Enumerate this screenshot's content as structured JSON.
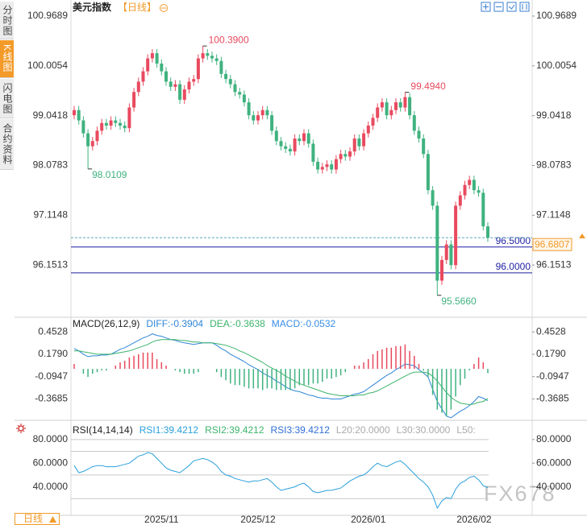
{
  "sidebar_tabs": [
    "分时图",
    "K线图",
    "闪电图",
    "合约资料"
  ],
  "period_button": "日线",
  "watermark": "FX678",
  "chart_data": [
    {
      "type": "candlestick",
      "title": "美元指数",
      "subtitle": "【日线】",
      "categories": [
        null,
        null,
        null,
        null,
        null,
        null,
        null,
        null,
        null,
        null,
        null,
        null,
        null,
        null,
        null,
        null,
        null,
        null,
        null,
        "2025/11",
        null,
        null,
        null,
        null,
        null,
        null,
        null,
        null,
        null,
        null,
        null,
        null,
        null,
        null,
        null,
        null,
        null,
        null,
        null,
        null,
        "2025/12",
        null,
        null,
        null,
        null,
        null,
        null,
        null,
        null,
        null,
        null,
        null,
        null,
        null,
        null,
        null,
        null,
        null,
        null,
        null,
        null,
        null,
        null,
        null,
        "2026/01",
        null,
        null,
        null,
        null,
        null,
        null,
        null,
        null,
        null,
        null,
        null,
        null,
        null,
        null,
        null,
        null,
        null,
        null,
        null,
        null,
        null,
        null,
        "2026/02",
        null,
        null,
        null
      ],
      "open": [
        99.05,
        99.15,
        98.95,
        98.7,
        98.45,
        98.55,
        98.75,
        98.9,
        98.85,
        98.95,
        98.9,
        98.85,
        98.8,
        99.2,
        99.5,
        99.7,
        99.9,
        100.15,
        100.25,
        100.05,
        99.9,
        99.7,
        99.6,
        99.65,
        99.35,
        99.55,
        99.7,
        99.75,
        100.15,
        100.25,
        100.2,
        100.15,
        100.1,
        99.85,
        99.75,
        99.65,
        99.5,
        99.45,
        99.3,
        99.05,
        98.95,
        99.05,
        99.15,
        99.05,
        98.75,
        98.55,
        98.45,
        98.4,
        98.35,
        98.6,
        98.55,
        98.7,
        98.5,
        98.15,
        98.0,
        98.05,
        98.1,
        98.0,
        98.2,
        98.3,
        98.25,
        98.35,
        98.6,
        98.45,
        98.7,
        98.85,
        99.0,
        99.2,
        99.3,
        99.05,
        99.15,
        99.3,
        99.2,
        99.4,
        99.05,
        98.75,
        98.6,
        98.3,
        97.6,
        97.3,
        95.85,
        96.25,
        96.55,
        96.15,
        97.3,
        97.5,
        97.7,
        97.8,
        97.6,
        97.55,
        96.9
      ],
      "high": [
        99.23,
        99.23,
        99.03,
        98.78,
        98.63,
        98.83,
        98.98,
        98.98,
        99.03,
        99.03,
        98.98,
        98.93,
        99.28,
        99.58,
        99.78,
        99.98,
        100.23,
        100.33,
        100.33,
        100.13,
        99.98,
        99.78,
        99.73,
        99.73,
        99.63,
        99.78,
        99.83,
        100.23,
        100.39,
        100.33,
        100.28,
        100.23,
        100.18,
        99.93,
        99.83,
        99.73,
        99.58,
        99.53,
        99.38,
        99.13,
        99.13,
        99.23,
        99.23,
        99.13,
        98.83,
        98.63,
        98.53,
        98.48,
        98.68,
        98.68,
        98.78,
        98.78,
        98.58,
        98.23,
        98.13,
        98.18,
        98.18,
        98.28,
        98.38,
        98.38,
        98.43,
        98.68,
        98.68,
        98.78,
        98.93,
        99.08,
        99.28,
        99.38,
        99.38,
        99.23,
        99.38,
        99.38,
        99.494,
        99.48,
        99.13,
        98.83,
        98.68,
        98.38,
        97.68,
        97.38,
        96.33,
        96.63,
        96.63,
        97.38,
        97.58,
        97.78,
        97.88,
        97.88,
        97.68,
        97.63,
        96.98
      ],
      "low": [
        98.97,
        98.87,
        98.62,
        98.0109,
        98.37,
        98.47,
        98.67,
        98.77,
        98.77,
        98.82,
        98.77,
        98.72,
        98.72,
        99.12,
        99.42,
        99.62,
        99.82,
        100.07,
        99.97,
        99.82,
        99.62,
        99.52,
        99.52,
        99.27,
        99.27,
        99.47,
        99.62,
        99.67,
        100.07,
        100.12,
        100.07,
        100.02,
        99.77,
        99.67,
        99.57,
        99.42,
        99.37,
        99.22,
        98.97,
        98.87,
        98.87,
        98.97,
        98.97,
        98.67,
        98.47,
        98.37,
        98.32,
        98.27,
        98.27,
        98.47,
        98.47,
        98.42,
        98.07,
        97.92,
        97.92,
        97.97,
        97.92,
        97.92,
        98.12,
        98.17,
        98.17,
        98.27,
        98.37,
        98.37,
        98.62,
        98.77,
        98.92,
        99.12,
        98.97,
        98.97,
        99.07,
        99.12,
        99.12,
        98.97,
        98.67,
        98.52,
        98.22,
        97.52,
        97.22,
        95.566,
        95.77,
        96.17,
        96.07,
        96.07,
        97.22,
        97.42,
        97.62,
        97.52,
        97.47,
        96.82,
        96.6
      ],
      "close": [
        99.15,
        98.95,
        98.7,
        98.45,
        98.55,
        98.75,
        98.9,
        98.85,
        98.95,
        98.9,
        98.85,
        98.8,
        99.2,
        99.5,
        99.7,
        99.9,
        100.15,
        100.25,
        100.05,
        99.9,
        99.7,
        99.6,
        99.65,
        99.35,
        99.55,
        99.7,
        99.75,
        100.15,
        100.25,
        100.2,
        100.15,
        100.1,
        99.85,
        99.75,
        99.65,
        99.5,
        99.45,
        99.3,
        99.05,
        98.95,
        99.05,
        99.15,
        99.05,
        98.75,
        98.55,
        98.45,
        98.4,
        98.35,
        98.6,
        98.55,
        98.7,
        98.5,
        98.15,
        98.0,
        98.05,
        98.1,
        98.0,
        98.2,
        98.3,
        98.25,
        98.35,
        98.6,
        98.45,
        98.7,
        98.85,
        99.0,
        99.2,
        99.3,
        99.05,
        99.15,
        99.3,
        99.2,
        99.4,
        99.05,
        98.75,
        98.6,
        98.3,
        97.6,
        97.3,
        95.85,
        96.25,
        96.55,
        96.15,
        97.3,
        97.5,
        97.7,
        97.8,
        97.6,
        97.55,
        96.9,
        96.6807
      ],
      "high_labels": [
        null,
        null,
        null,
        null,
        null,
        null,
        null,
        null,
        null,
        null,
        null,
        null,
        null,
        null,
        null,
        null,
        null,
        null,
        null,
        null,
        null,
        null,
        null,
        null,
        null,
        null,
        null,
        null,
        "100.3900",
        null,
        null,
        null,
        null,
        null,
        null,
        null,
        null,
        null,
        null,
        null,
        null,
        null,
        null,
        null,
        null,
        null,
        null,
        null,
        null,
        null,
        null,
        null,
        null,
        null,
        null,
        null,
        null,
        null,
        null,
        null,
        null,
        null,
        null,
        null,
        null,
        null,
        null,
        null,
        null,
        null,
        null,
        null,
        "99.4940",
        null,
        null,
        null,
        null,
        null,
        null,
        null,
        null,
        null,
        null,
        null,
        null,
        null,
        null,
        null,
        null,
        null,
        null
      ],
      "low_labels": [
        null,
        null,
        null,
        "98.0109",
        null,
        null,
        null,
        null,
        null,
        null,
        null,
        null,
        null,
        null,
        null,
        null,
        null,
        null,
        null,
        null,
        null,
        null,
        null,
        null,
        null,
        null,
        null,
        null,
        null,
        null,
        null,
        null,
        null,
        null,
        null,
        null,
        null,
        null,
        null,
        null,
        null,
        null,
        null,
        null,
        null,
        null,
        null,
        null,
        null,
        null,
        null,
        null,
        null,
        null,
        null,
        null,
        null,
        null,
        null,
        null,
        null,
        null,
        null,
        null,
        null,
        null,
        null,
        null,
        null,
        null,
        null,
        null,
        null,
        null,
        null,
        null,
        null,
        null,
        null,
        "95.5660",
        null,
        null,
        null,
        null,
        null,
        null,
        null,
        null,
        null,
        null,
        null
      ],
      "up_color": "#e84a5f",
      "down_color": "#3fb27f",
      "ylim": [
        95.157,
        101.202
      ],
      "yticks": [
        100.9689,
        100.0054,
        99.0418,
        98.0783,
        97.1148,
        96.1513
      ],
      "hlines": [
        {
          "value": 96.5,
          "label": "96.5000",
          "color": "#1f1fa3"
        },
        {
          "value": 96,
          "label": "96.0000",
          "color": "#1f1fa3"
        }
      ],
      "last_price": {
        "value": 96.6807,
        "label": "96.6807",
        "color": "#f09a2a"
      }
    },
    {
      "type": "macd",
      "title": "MACD(26,12,9)",
      "series": [
        {
          "name": "DIFF:-0.3904",
          "color": "#2f86d6",
          "values": [
            0.25,
            0.22,
            0.18,
            0.15,
            0.16,
            0.16,
            0.17,
            0.17,
            0.18,
            0.21,
            0.24,
            0.26,
            0.29,
            0.32,
            0.35,
            0.38,
            0.4,
            0.43,
            0.41,
            0.4,
            0.38,
            0.36,
            0.35,
            0.33,
            0.32,
            0.31,
            0.3,
            0.31,
            0.32,
            0.32,
            0.32,
            0.29,
            0.25,
            0.22,
            0.18,
            0.15,
            0.12,
            0.09,
            0.05,
            0.02,
            -0.01,
            -0.05,
            -0.08,
            -0.11,
            -0.15,
            -0.18,
            -0.22,
            -0.25,
            -0.27,
            -0.28,
            -0.3,
            -0.32,
            -0.33,
            -0.35,
            -0.36,
            -0.36,
            -0.37,
            -0.37,
            -0.37,
            -0.35,
            -0.33,
            -0.31,
            -0.3,
            -0.28,
            -0.24,
            -0.2,
            -0.16,
            -0.12,
            -0.08,
            -0.05,
            -0.01,
            0.02,
            0.06,
            0.05,
            0.04,
            -0.01,
            -0.05,
            -0.1,
            -0.25,
            -0.4,
            -0.49,
            -0.58,
            -0.6,
            -0.56,
            -0.52,
            -0.49,
            -0.45,
            -0.4,
            -0.34,
            -0.36,
            -0.3904
          ]
        },
        {
          "name": "DEA:-0.3638",
          "color": "#3db36b",
          "values": [
            0.22,
            0.22,
            0.21,
            0.2,
            0.19,
            0.18,
            0.18,
            0.18,
            0.18,
            0.19,
            0.2,
            0.21,
            0.22,
            0.24,
            0.26,
            0.28,
            0.3,
            0.33,
            0.35,
            0.36,
            0.36,
            0.36,
            0.36,
            0.35,
            0.35,
            0.34,
            0.33,
            0.33,
            0.32,
            0.32,
            0.32,
            0.31,
            0.3,
            0.29,
            0.27,
            0.25,
            0.22,
            0.2,
            0.17,
            0.14,
            0.11,
            0.08,
            0.04,
            0.01,
            -0.02,
            -0.05,
            -0.09,
            -0.12,
            -0.15,
            -0.18,
            -0.2,
            -0.22,
            -0.24,
            -0.26,
            -0.28,
            -0.3,
            -0.31,
            -0.32,
            -0.33,
            -0.33,
            -0.33,
            -0.33,
            -0.32,
            -0.32,
            -0.3,
            -0.29,
            -0.27,
            -0.24,
            -0.21,
            -0.18,
            -0.15,
            -0.12,
            -0.09,
            -0.06,
            -0.04,
            -0.04,
            -0.04,
            -0.05,
            -0.09,
            -0.15,
            -0.22,
            -0.29,
            -0.35,
            -0.39,
            -0.42,
            -0.43,
            -0.44,
            -0.43,
            -0.41,
            -0.4,
            -0.3638
          ]
        },
        {
          "name": "MACD:-0.0532",
          "type": "bar",
          "color": "#3a8ee6",
          "up_color": "#e84a5f",
          "down_color": "#3fb27f",
          "values": [
            0.06,
            0,
            -0.06,
            -0.1,
            -0.06,
            -0.04,
            -0.02,
            -0.02,
            0,
            0.04,
            0.08,
            0.1,
            0.14,
            0.16,
            0.18,
            0.2,
            0.2,
            0.2,
            0.12,
            0.08,
            0.04,
            0,
            -0.02,
            -0.04,
            -0.06,
            -0.06,
            -0.06,
            -0.04,
            0,
            0,
            0,
            -0.04,
            -0.1,
            -0.14,
            -0.18,
            -0.2,
            -0.2,
            -0.22,
            -0.24,
            -0.24,
            -0.24,
            -0.26,
            -0.24,
            -0.24,
            -0.26,
            -0.26,
            -0.26,
            -0.26,
            -0.24,
            -0.2,
            -0.2,
            -0.2,
            -0.18,
            -0.18,
            -0.16,
            -0.12,
            -0.12,
            -0.1,
            -0.08,
            -0.04,
            0,
            0.04,
            0.04,
            0.08,
            0.12,
            0.18,
            0.22,
            0.24,
            0.26,
            0.26,
            0.28,
            0.28,
            0.3,
            0.22,
            0.16,
            0.06,
            -0.02,
            -0.1,
            -0.32,
            -0.5,
            -0.54,
            -0.58,
            -0.5,
            -0.34,
            -0.2,
            -0.12,
            -0.02,
            0.06,
            0.14,
            0.08,
            -0.0532
          ]
        }
      ],
      "ylim": [
        -0.612,
        0.614
      ],
      "yticks": [
        0.4528,
        {
          "value": 0.179,
          "label": "0.1790"
        },
        -0.0947,
        -0.3685
      ]
    },
    {
      "type": "line",
      "title": "RSI(14,14,14)",
      "series": [
        {
          "name": "RSI1:39.4212",
          "color": "#2aa0dc",
          "values": [
            58,
            52,
            53,
            55,
            57,
            58,
            58,
            57,
            57,
            57,
            58,
            59,
            60,
            63,
            66,
            67,
            69,
            68,
            64,
            60,
            56,
            54,
            53,
            52,
            55,
            58,
            62,
            63,
            64,
            63,
            61,
            58,
            53,
            50,
            49,
            47,
            46,
            45,
            44,
            45,
            45,
            46,
            47,
            44,
            40,
            37,
            38,
            39,
            40,
            42,
            43,
            40,
            36,
            35,
            36,
            37,
            37,
            38,
            39,
            42,
            45,
            47,
            49,
            50,
            53,
            57,
            60,
            58,
            57,
            59,
            61,
            62,
            59,
            55,
            51,
            47,
            44,
            40,
            33,
            22,
            28,
            31,
            30,
            38,
            43,
            45,
            48,
            49,
            46,
            41,
            39.4212
          ]
        }
      ],
      "legend_extra": [
        {
          "text": "RSI2:39.4212",
          "color": "#3db36b"
        },
        {
          "text": "RSI3:39.4212",
          "color": "#2f6fd6"
        },
        {
          "text": "L20:20.0000",
          "color": "#aaaaaa"
        },
        {
          "text": "L30:30.0000",
          "color": "#aaaaaa"
        },
        {
          "text": "L50:",
          "color": "#aaaaaa"
        }
      ],
      "levels": [
        80,
        70,
        50,
        30
      ],
      "ylim": [
        15.9,
        94.2
      ],
      "yticks": [
        {
          "value": 80,
          "label": "80.0000"
        },
        {
          "value": 60,
          "label": "60.0000"
        },
        {
          "value": 40,
          "label": "40.0000"
        }
      ]
    }
  ]
}
